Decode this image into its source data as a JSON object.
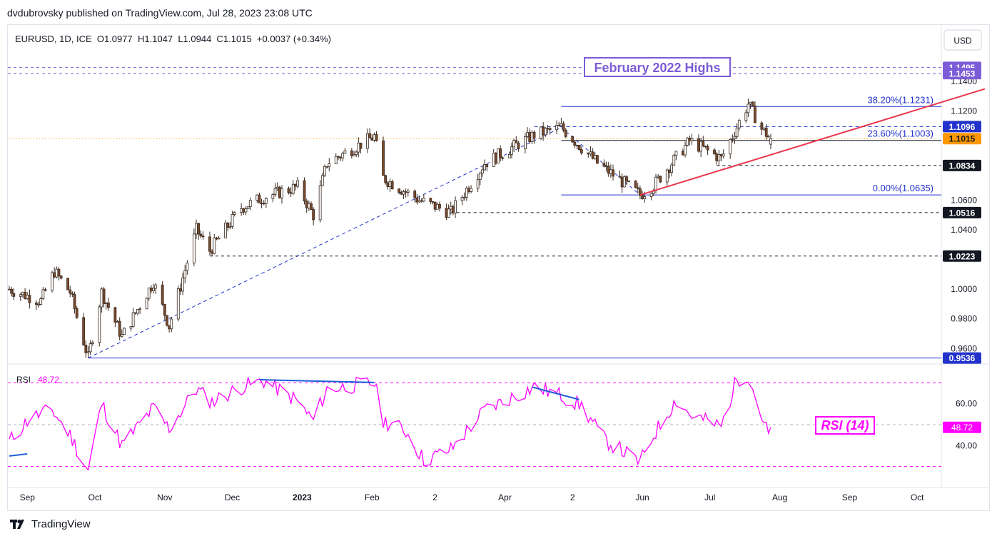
{
  "byline": "dvdubrovsky published on TradingView.com, Jul 28, 2023 23:08 UTC",
  "header": {
    "symbol_line": "EURUSD, 1D, ICE  O1.0977  H1.1047  L1.0944  C1.1015  +0.0037 (+0.34%)",
    "currency_button": "USD"
  },
  "footer": {
    "brand": "TradingView"
  },
  "colors": {
    "up": "#ffffff",
    "down": "#7a4a2b",
    "wick": "#3a2a20",
    "rsi": "#ff00ff",
    "trend": "#e8384f",
    "fib": "#2233cc",
    "highs": "#7b5cd6",
    "price_tag": "#ff9800"
  },
  "chart_data": [
    {
      "type": "candlestick",
      "symbol": "EURUSD",
      "interval": "1D",
      "exchange": "ICE",
      "ohlc": {
        "open": 1.0977,
        "high": 1.1047,
        "low": 1.0944,
        "close": 1.1015,
        "change": "+0.0037 (+0.34%)"
      },
      "ylim": [
        0.951,
        1.155
      ],
      "y_ticks": [
        "1.1400",
        "1.1200",
        "1.0600",
        "1.0400",
        "1.0000",
        "0.9800",
        "0.9600"
      ],
      "x_ticks": [
        "Sep",
        "Oct",
        "Nov",
        "Dec",
        "2023",
        "Feb",
        "2",
        "Apr",
        "2",
        "Jun",
        "Jul",
        "Aug",
        "Sep",
        "Oct"
      ],
      "anchors": [
        {
          "date": "2022-08-24",
          "value": 1.0
        },
        {
          "date": "2022-09-07",
          "value": 0.992
        },
        {
          "date": "2022-09-13",
          "value": 1.012
        },
        {
          "date": "2022-09-20",
          "value": 0.998
        },
        {
          "date": "2022-09-28",
          "value": 0.9536
        },
        {
          "date": "2022-10-04",
          "value": 0.998
        },
        {
          "date": "2022-10-13",
          "value": 0.968
        },
        {
          "date": "2022-10-27",
          "value": 1.005
        },
        {
          "date": "2022-11-03",
          "value": 0.975
        },
        {
          "date": "2022-11-15",
          "value": 1.04
        },
        {
          "date": "2022-11-21",
          "value": 1.026
        },
        {
          "date": "2022-12-05",
          "value": 1.055
        },
        {
          "date": "2022-12-15",
          "value": 1.062
        },
        {
          "date": "2022-12-30",
          "value": 1.069
        },
        {
          "date": "2023-01-06",
          "value": 1.05
        },
        {
          "date": "2023-01-12",
          "value": 1.085
        },
        {
          "date": "2023-02-02",
          "value": 1.103
        },
        {
          "date": "2023-02-06",
          "value": 1.075
        },
        {
          "date": "2023-02-22",
          "value": 1.06
        },
        {
          "date": "2023-03-08",
          "value": 1.0516
        },
        {
          "date": "2023-03-23",
          "value": 1.085
        },
        {
          "date": "2023-04-14",
          "value": 1.104
        },
        {
          "date": "2023-04-26",
          "value": 1.109
        },
        {
          "date": "2023-05-12",
          "value": 1.085
        },
        {
          "date": "2023-05-31",
          "value": 1.0635
        },
        {
          "date": "2023-06-06",
          "value": 1.07
        },
        {
          "date": "2023-06-22",
          "value": 1.1
        },
        {
          "date": "2023-07-06",
          "value": 1.088
        },
        {
          "date": "2023-07-18",
          "value": 1.125
        },
        {
          "date": "2023-07-24",
          "value": 1.108
        },
        {
          "date": "2023-07-28",
          "value": 1.1015
        }
      ],
      "levels": [
        {
          "value": 1.1495,
          "label": "1.1495",
          "style": "dashed",
          "color": "#7b5cd6",
          "tag_bg": "#7b5cd6",
          "tag_color": "#ffffff"
        },
        {
          "value": 1.1453,
          "label": "1.1453",
          "style": "dashed",
          "color": "#7b5cd6",
          "tag_bg": "#7b5cd6",
          "tag_color": "#ffffff"
        },
        {
          "value": 1.1096,
          "label": "1.1096",
          "style": "none",
          "color": "#2233cc",
          "tag_bg": "#2233cc",
          "tag_color": "#ffffff"
        },
        {
          "value": 1.1015,
          "label": "1.1015",
          "style": "dotted-full",
          "color": "#ff9800",
          "tag_bg": "#ff9800",
          "tag_color": "#131722"
        },
        {
          "value": 1.0834,
          "label": "1.0834",
          "style": "dashed",
          "color": "#131722",
          "tag_bg": "#131722",
          "tag_color": "#ffffff",
          "from": "2023-07-04"
        },
        {
          "value": 1.0516,
          "label": "1.0516",
          "style": "dashed",
          "color": "#131722",
          "tag_bg": "#131722",
          "tag_color": "#ffffff",
          "from": "2023-03-08"
        },
        {
          "value": 1.0223,
          "label": "1.0223",
          "style": "dashed",
          "color": "#131722",
          "tag_bg": "#131722",
          "tag_color": "#ffffff",
          "from": "2022-11-21"
        },
        {
          "value": 0.9536,
          "label": "0.9536",
          "style": "solid",
          "color": "#2233cc",
          "tag_bg": "#2233cc",
          "tag_color": "#ffffff",
          "from": "2022-09-28"
        }
      ],
      "fibonacci": [
        {
          "value": 1.1231,
          "label": "38.20%(1.1231)"
        },
        {
          "value": 1.1003,
          "label": "23.60%(1.1003)"
        },
        {
          "value": 1.0635,
          "label": "0.00%(1.0635)"
        }
      ],
      "fib_from": "2023-04-26",
      "highs_box": "February 2022 Highs",
      "trendline": {
        "from": {
          "date": "2023-05-31",
          "value": 1.0635
        },
        "to": {
          "date": "2023-10-31",
          "value": 1.135
        }
      },
      "dashed_diagonals": [
        {
          "from": {
            "date": "2022-09-28",
            "value": 0.9536
          },
          "to": {
            "date": "2023-04-26",
            "value": 1.109
          }
        },
        {
          "from": {
            "date": "2023-04-26",
            "value": 1.109
          },
          "to": {
            "date": "2023-05-31",
            "value": 1.0635
          }
        }
      ]
    },
    {
      "type": "line",
      "name": "RSI",
      "value_label": "48.72",
      "indicator_label": "RSI (14)",
      "ylim": [
        22,
        78
      ],
      "y_ticks": [
        "60.00",
        "40.00"
      ],
      "bands": [
        70,
        30
      ],
      "anchors": [
        {
          "date": "2022-08-24",
          "value": 42
        },
        {
          "date": "2022-09-02",
          "value": 53
        },
        {
          "date": "2022-09-12",
          "value": 57
        },
        {
          "date": "2022-09-20",
          "value": 45
        },
        {
          "date": "2022-09-28",
          "value": 28
        },
        {
          "date": "2022-10-04",
          "value": 60
        },
        {
          "date": "2022-10-13",
          "value": 40
        },
        {
          "date": "2022-10-27",
          "value": 58
        },
        {
          "date": "2022-11-03",
          "value": 48
        },
        {
          "date": "2022-11-15",
          "value": 67
        },
        {
          "date": "2022-11-22",
          "value": 61
        },
        {
          "date": "2022-12-05",
          "value": 68
        },
        {
          "date": "2022-12-15",
          "value": 71
        },
        {
          "date": "2022-12-29",
          "value": 62
        },
        {
          "date": "2023-01-06",
          "value": 52
        },
        {
          "date": "2023-01-12",
          "value": 67
        },
        {
          "date": "2023-02-02",
          "value": 70
        },
        {
          "date": "2023-02-06",
          "value": 52
        },
        {
          "date": "2023-02-16",
          "value": 47
        },
        {
          "date": "2023-02-24",
          "value": 33
        },
        {
          "date": "2023-03-08",
          "value": 38
        },
        {
          "date": "2023-03-23",
          "value": 57
        },
        {
          "date": "2023-04-14",
          "value": 68
        },
        {
          "date": "2023-04-26",
          "value": 64
        },
        {
          "date": "2023-05-05",
          "value": 59
        },
        {
          "date": "2023-05-15",
          "value": 43
        },
        {
          "date": "2023-05-31",
          "value": 32
        },
        {
          "date": "2023-06-06",
          "value": 45
        },
        {
          "date": "2023-06-16",
          "value": 62
        },
        {
          "date": "2023-06-22",
          "value": 55
        },
        {
          "date": "2023-07-06",
          "value": 49
        },
        {
          "date": "2023-07-13",
          "value": 72
        },
        {
          "date": "2023-07-18",
          "value": 74
        },
        {
          "date": "2023-07-24",
          "value": 54
        },
        {
          "date": "2023-07-27",
          "value": 45
        },
        {
          "date": "2023-07-28",
          "value": 48.72
        }
      ],
      "divergences": [
        {
          "from": {
            "date": "2022-08-24",
            "value": 35
          },
          "to": {
            "date": "2022-09-01",
            "value": 36
          }
        },
        {
          "from": {
            "date": "2022-12-13",
            "value": 71.5
          },
          "to": {
            "date": "2023-02-02",
            "value": 70.2
          }
        },
        {
          "from": {
            "date": "2023-04-13",
            "value": 68
          },
          "to": {
            "date": "2023-05-04",
            "value": 62
          }
        }
      ]
    }
  ]
}
